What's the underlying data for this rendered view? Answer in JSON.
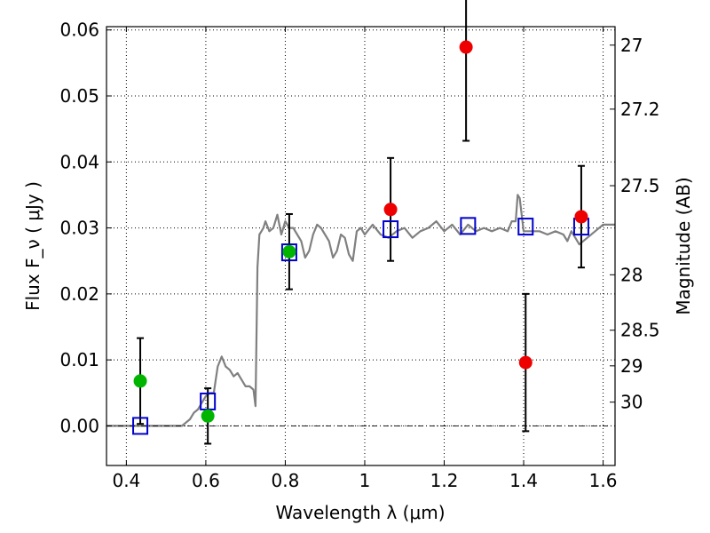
{
  "chart_data": {
    "type": "scatter",
    "title": "",
    "xlabel": "Wavelength  λ (μm)",
    "ylabel": "Flux  F_ν  ( μJy )",
    "ylabel_right": "Magnitude (AB)",
    "xlim": [
      0.35,
      1.63
    ],
    "ylim": [
      -0.006,
      0.0605
    ],
    "x_ticks": [
      0.4,
      0.6,
      0.8,
      1.0,
      1.2,
      1.4,
      1.6
    ],
    "x_tick_labels": [
      "0.4",
      "0.6",
      "0.8",
      "1",
      "1.2",
      "1.4",
      "1.6"
    ],
    "y_ticks": [
      0.0,
      0.01,
      0.02,
      0.03,
      0.04,
      0.05,
      0.06
    ],
    "y_tick_labels": [
      "0.00",
      "0.01",
      "0.02",
      "0.03",
      "0.04",
      "0.05",
      "0.06"
    ],
    "right_ticks": [
      {
        "label": "27",
        "flux": 0.0577
      },
      {
        "label": "27.2",
        "flux": 0.048
      },
      {
        "label": "27.5",
        "flux": 0.0364
      },
      {
        "label": "28",
        "flux": 0.0229
      },
      {
        "label": "28.5",
        "flux": 0.0145
      },
      {
        "label": "29",
        "flux": 0.0091
      },
      {
        "label": "30",
        "flux": 0.0036
      }
    ],
    "grid": true,
    "colors": {
      "model": "#808080",
      "green": "#00b400",
      "red": "#ee0000",
      "squares": "#0000cc",
      "errorbar": "#000000"
    },
    "series": [
      {
        "marker": "line",
        "x": [
          0.35,
          0.45,
          0.54,
          0.55,
          0.56,
          0.57,
          0.58,
          0.59,
          0.6,
          0.61,
          0.62,
          0.625,
          0.63,
          0.64,
          0.65,
          0.66,
          0.67,
          0.68,
          0.69,
          0.7,
          0.71,
          0.72,
          0.725,
          0.73,
          0.735,
          0.74,
          0.745,
          0.75,
          0.76,
          0.77,
          0.78,
          0.79,
          0.8,
          0.81,
          0.82,
          0.83,
          0.84,
          0.85,
          0.86,
          0.87,
          0.88,
          0.89,
          0.9,
          0.91,
          0.92,
          0.93,
          0.94,
          0.95,
          0.96,
          0.97,
          0.98,
          0.99,
          1.0,
          1.02,
          1.04,
          1.06,
          1.08,
          1.1,
          1.12,
          1.14,
          1.16,
          1.18,
          1.2,
          1.22,
          1.24,
          1.26,
          1.28,
          1.3,
          1.32,
          1.34,
          1.36,
          1.37,
          1.38,
          1.385,
          1.39,
          1.4,
          1.42,
          1.44,
          1.46,
          1.48,
          1.5,
          1.51,
          1.52,
          1.54,
          1.56,
          1.58,
          1.6,
          1.63
        ],
        "y": [
          0.0,
          0.0,
          0.0,
          0.0005,
          0.001,
          0.002,
          0.0025,
          0.0035,
          0.0045,
          0.005,
          0.005,
          0.007,
          0.009,
          0.0105,
          0.009,
          0.0085,
          0.0075,
          0.008,
          0.007,
          0.006,
          0.006,
          0.0055,
          0.003,
          0.024,
          0.029,
          0.0295,
          0.03,
          0.031,
          0.0295,
          0.03,
          0.032,
          0.029,
          0.031,
          0.03,
          0.03,
          0.029,
          0.028,
          0.0255,
          0.0265,
          0.029,
          0.0305,
          0.03,
          0.029,
          0.028,
          0.0255,
          0.0265,
          0.029,
          0.0285,
          0.026,
          0.025,
          0.0295,
          0.03,
          0.029,
          0.0305,
          0.029,
          0.0285,
          0.0295,
          0.03,
          0.0285,
          0.0295,
          0.03,
          0.031,
          0.0295,
          0.0305,
          0.029,
          0.0305,
          0.0295,
          0.03,
          0.0295,
          0.03,
          0.0295,
          0.031,
          0.031,
          0.035,
          0.0345,
          0.0295,
          0.0295,
          0.0295,
          0.029,
          0.0295,
          0.029,
          0.028,
          0.0295,
          0.0275,
          0.0285,
          0.0295,
          0.0305,
          0.0305
        ]
      },
      {
        "marker": "square",
        "x": [
          0.435,
          0.605,
          0.81,
          1.065,
          1.26,
          1.405,
          1.545
        ],
        "y": [
          0.0,
          0.0037,
          0.0263,
          0.0298,
          0.0303,
          0.0302,
          0.0302
        ]
      },
      {
        "marker": "circle-green",
        "x": [
          0.435,
          0.605,
          0.81
        ],
        "y": [
          0.0068,
          0.0015,
          0.0264
        ],
        "yerr": [
          0.0065,
          0.0042,
          0.0057
        ]
      },
      {
        "marker": "circle-red",
        "x": [
          1.065,
          1.255,
          1.405,
          1.545
        ],
        "y": [
          0.0328,
          0.0574,
          0.0096,
          0.0317
        ],
        "yerr": [
          0.0078,
          0.0142,
          0.0104,
          0.0077
        ]
      }
    ]
  }
}
